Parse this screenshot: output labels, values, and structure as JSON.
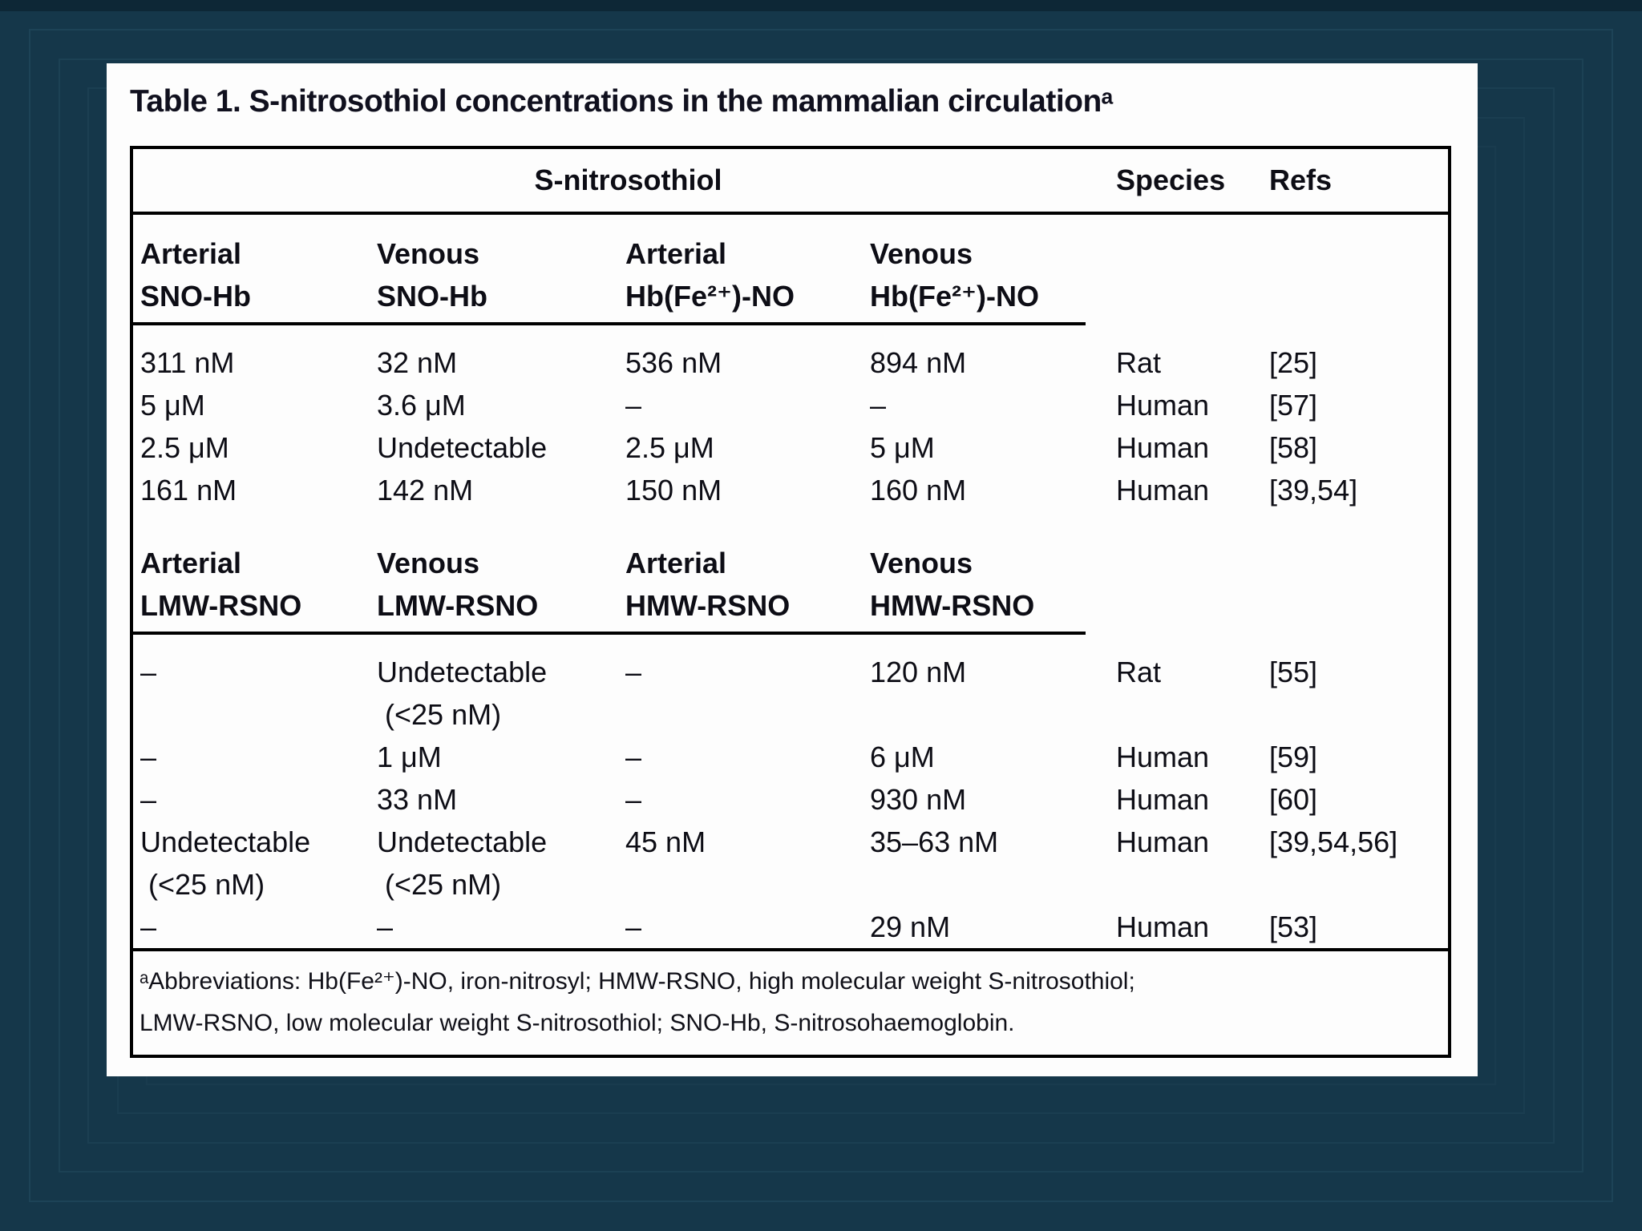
{
  "page": {
    "title": "Table 1. S-nitrosothiol concentrations in the mammalian circulationᵃ"
  },
  "colors": {
    "background": "#15374a",
    "top_band": "#0d2736",
    "frame_line": "#1d4357",
    "panel": "#fdfdfd",
    "text": "#0d0d15",
    "table_border": "#000000"
  },
  "table": {
    "group_header": "S-nitrosothiol",
    "species_header": "Species",
    "refs_header": "Refs",
    "section1": {
      "col1": "Arterial\nSNO-Hb",
      "col2": "Venous\nSNO-Hb",
      "col3": "Arterial\nHb(Fe²⁺)-NO",
      "col4": "Venous\nHb(Fe²⁺)-NO",
      "rows": [
        {
          "c1": "311 nM",
          "c2": "32 nM",
          "c3": "536 nM",
          "c4": "894 nM",
          "species": "Rat",
          "refs": "[25]"
        },
        {
          "c1": "5 μM",
          "c2": "3.6 μM",
          "c3": "–",
          "c4": "–",
          "species": "Human",
          "refs": "[57]"
        },
        {
          "c1": "2.5 μM",
          "c2": "Undetectable",
          "c3": "2.5 μM",
          "c4": "5 μM",
          "species": "Human",
          "refs": "[58]"
        },
        {
          "c1": "161 nM",
          "c2": "142 nM",
          "c3": "150 nM",
          "c4": "160 nM",
          "species": "Human",
          "refs": "[39,54]"
        }
      ]
    },
    "section2": {
      "col1": "Arterial\nLMW-RSNO",
      "col2": "Venous\nLMW-RSNO",
      "col3": "Arterial\nHMW-RSNO",
      "col4": "Venous\nHMW-RSNO",
      "rows": [
        {
          "c1": "–",
          "c2": "Undetectable\n (<25 nM)",
          "c3": "–",
          "c4": "120 nM",
          "species": "Rat",
          "refs": "[55]"
        },
        {
          "c1": "–",
          "c2": "1 μM",
          "c3": "–",
          "c4": "6 μM",
          "species": "Human",
          "refs": "[59]"
        },
        {
          "c1": "–",
          "c2": "33 nM",
          "c3": "–",
          "c4": "930 nM",
          "species": "Human",
          "refs": "[60]"
        },
        {
          "c1": "Undetectable\n (<25 nM)",
          "c2": "Undetectable\n (<25 nM)",
          "c3": "45 nM",
          "c4": "35–63 nM",
          "species": "Human",
          "refs": "[39,54,56]"
        },
        {
          "c1": "–",
          "c2": "–",
          "c3": "–",
          "c4": "29 nM",
          "species": "Human",
          "refs": "[53]"
        }
      ]
    },
    "footnote": "ᵃAbbreviations: Hb(Fe²⁺)-NO, iron-nitrosyl; HMW-RSNO, high molecular weight S-nitrosothiol;\nLMW-RSNO, low molecular weight S-nitrosothiol; SNO-Hb, S-nitrosohaemoglobin."
  }
}
